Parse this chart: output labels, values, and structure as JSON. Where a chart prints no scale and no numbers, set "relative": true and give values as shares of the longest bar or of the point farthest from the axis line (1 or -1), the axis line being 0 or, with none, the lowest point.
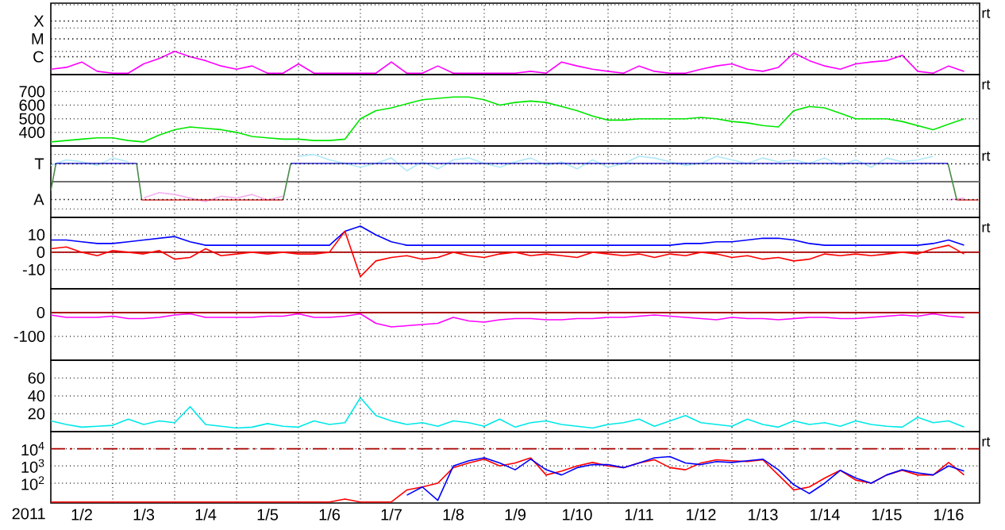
{
  "chart_data": [
    {
      "type": "line",
      "relative": true,
      "grid": true,
      "tick_labels": false,
      "annotations": [
        "C",
        "M",
        "X",
        "rt"
      ],
      "xlim": [
        "2011-01-02T00:00",
        "2011-01-17T00:00"
      ],
      "xticks": [
        {
          "value": "2011-01-03T00:00",
          "label": null
        },
        {
          "value": "2011-01-04T00:00",
          "label": null
        },
        {
          "value": "2011-01-05T00:00",
          "label": null
        },
        {
          "value": "2011-01-06T00:00",
          "label": null
        },
        {
          "value": "2011-01-07T00:00",
          "label": null
        },
        {
          "value": "2011-01-08T00:00",
          "label": null
        },
        {
          "value": "2011-01-09T00:00",
          "label": null
        },
        {
          "value": "2011-01-10T00:00",
          "label": null
        },
        {
          "value": "2011-01-11T00:00",
          "label": null
        },
        {
          "value": "2011-01-12T00:00",
          "label": null
        },
        {
          "value": "2011-01-13T00:00",
          "label": null
        },
        {
          "value": "2011-01-14T00:00",
          "label": null
        },
        {
          "value": "2011-01-15T00:00",
          "label": null
        },
        {
          "value": "2011-01-16T00:00",
          "label": null
        }
      ],
      "x": [
        "2011-01-02T00:00",
        "2011-01-02T06:00",
        "2011-01-02T12:00",
        "2011-01-02T18:00",
        "2011-01-03T00:00",
        "2011-01-03T06:00",
        "2011-01-03T12:00",
        "2011-01-03T18:00",
        "2011-01-04T00:00",
        "2011-01-04T06:00",
        "2011-01-04T12:00",
        "2011-01-04T18:00",
        "2011-01-05T00:00",
        "2011-01-05T06:00",
        "2011-01-05T12:00",
        "2011-01-05T18:00",
        "2011-01-06T00:00",
        "2011-01-06T06:00",
        "2011-01-06T12:00",
        "2011-01-06T18:00",
        "2011-01-07T00:00",
        "2011-01-07T06:00",
        "2011-01-07T12:00",
        "2011-01-07T18:00",
        "2011-01-08T00:00",
        "2011-01-08T06:00",
        "2011-01-08T12:00",
        "2011-01-08T18:00",
        "2011-01-09T00:00",
        "2011-01-09T06:00",
        "2011-01-09T12:00",
        "2011-01-09T18:00",
        "2011-01-10T00:00",
        "2011-01-10T06:00",
        "2011-01-10T12:00",
        "2011-01-10T18:00",
        "2011-01-11T00:00",
        "2011-01-11T06:00",
        "2011-01-11T12:00",
        "2011-01-11T18:00",
        "2011-01-12T00:00",
        "2011-01-12T06:00",
        "2011-01-12T12:00",
        "2011-01-12T18:00",
        "2011-01-13T00:00",
        "2011-01-13T06:00",
        "2011-01-13T12:00",
        "2011-01-13T18:00",
        "2011-01-14T00:00",
        "2011-01-14T06:00",
        "2011-01-14T12:00",
        "2011-01-14T18:00",
        "2011-01-15T00:00",
        "2011-01-15T06:00",
        "2011-01-15T12:00",
        "2011-01-15T18:00",
        "2011-01-16T00:00",
        "2011-01-16T06:00",
        "2011-01-16T12:00",
        "2011-01-16T18:00"
      ],
      "series": [
        {
          "color": "#ff00ff",
          "values": [
            0.23,
            0.31,
            0.54,
            0.14,
            0.06,
            0.06,
            0.46,
            0.69,
            1,
            0.77,
            0.6,
            0.37,
            0.23,
            0.37,
            0.06,
            0.06,
            0.46,
            0.06,
            0.06,
            0.06,
            0.06,
            0.06,
            0.54,
            0.06,
            0.06,
            0.37,
            0.06,
            0.06,
            0.06,
            0.06,
            0.06,
            0.14,
            0.06,
            0.54,
            0.37,
            0.23,
            0.14,
            0.06,
            0.37,
            0.14,
            0.06,
            0.06,
            0.23,
            0.37,
            0.46,
            0.23,
            0.14,
            0.31,
            0.93,
            0.6,
            0.37,
            0.23,
            0.46,
            0.54,
            0.6,
            0.83,
            0.14,
            0.06,
            0.37,
            0.14
          ]
        }
      ]
    },
    {
      "type": "line",
      "ylim": [
        300,
        825
      ],
      "yticks": [
        400,
        500,
        600,
        700
      ],
      "grid": true,
      "tick_labels": "y",
      "annotations": [
        "rt"
      ],
      "xlim": [
        "2011-01-02T00:00",
        "2011-01-17T00:00"
      ],
      "xticks": [
        {
          "value": "2011-01-03T00:00",
          "label": null
        },
        {
          "value": "2011-01-04T00:00",
          "label": null
        },
        {
          "value": "2011-01-05T00:00",
          "label": null
        },
        {
          "value": "2011-01-06T00:00",
          "label": null
        },
        {
          "value": "2011-01-07T00:00",
          "label": null
        },
        {
          "value": "2011-01-08T00:00",
          "label": null
        },
        {
          "value": "2011-01-09T00:00",
          "label": null
        },
        {
          "value": "2011-01-10T00:00",
          "label": null
        },
        {
          "value": "2011-01-11T00:00",
          "label": null
        },
        {
          "value": "2011-01-12T00:00",
          "label": null
        },
        {
          "value": "2011-01-13T00:00",
          "label": null
        },
        {
          "value": "2011-01-14T00:00",
          "label": null
        },
        {
          "value": "2011-01-15T00:00",
          "label": null
        },
        {
          "value": "2011-01-16T00:00",
          "label": null
        }
      ],
      "x": [
        "2011-01-02T00:00",
        "2011-01-02T06:00",
        "2011-01-02T12:00",
        "2011-01-02T18:00",
        "2011-01-03T00:00",
        "2011-01-03T06:00",
        "2011-01-03T12:00",
        "2011-01-03T18:00",
        "2011-01-04T00:00",
        "2011-01-04T06:00",
        "2011-01-04T12:00",
        "2011-01-04T18:00",
        "2011-01-05T00:00",
        "2011-01-05T06:00",
        "2011-01-05T12:00",
        "2011-01-05T18:00",
        "2011-01-06T00:00",
        "2011-01-06T06:00",
        "2011-01-06T12:00",
        "2011-01-06T18:00",
        "2011-01-07T00:00",
        "2011-01-07T06:00",
        "2011-01-07T12:00",
        "2011-01-07T18:00",
        "2011-01-08T00:00",
        "2011-01-08T06:00",
        "2011-01-08T12:00",
        "2011-01-08T18:00",
        "2011-01-09T00:00",
        "2011-01-09T06:00",
        "2011-01-09T12:00",
        "2011-01-09T18:00",
        "2011-01-10T00:00",
        "2011-01-10T06:00",
        "2011-01-10T12:00",
        "2011-01-10T18:00",
        "2011-01-11T00:00",
        "2011-01-11T06:00",
        "2011-01-11T12:00",
        "2011-01-11T18:00",
        "2011-01-12T00:00",
        "2011-01-12T06:00",
        "2011-01-12T12:00",
        "2011-01-12T18:00",
        "2011-01-13T00:00",
        "2011-01-13T06:00",
        "2011-01-13T12:00",
        "2011-01-13T18:00",
        "2011-01-14T00:00",
        "2011-01-14T06:00",
        "2011-01-14T12:00",
        "2011-01-14T18:00",
        "2011-01-15T00:00",
        "2011-01-15T06:00",
        "2011-01-15T12:00",
        "2011-01-15T18:00",
        "2011-01-16T00:00",
        "2011-01-16T06:00",
        "2011-01-16T12:00",
        "2011-01-16T18:00"
      ],
      "series": [
        {
          "color": "#00e600",
          "values": [
            330,
            340,
            350,
            360,
            360,
            340,
            330,
            380,
            420,
            440,
            430,
            420,
            400,
            370,
            360,
            350,
            350,
            340,
            340,
            350,
            500,
            560,
            580,
            610,
            640,
            650,
            660,
            660,
            640,
            600,
            620,
            630,
            620,
            590,
            560,
            520,
            490,
            490,
            500,
            500,
            500,
            500,
            510,
            500,
            480,
            470,
            450,
            440,
            560,
            590,
            580,
            540,
            500,
            500,
            500,
            480,
            450,
            420,
            460,
            500
          ]
        }
      ]
    },
    {
      "type": "line",
      "relative": true,
      "grid": true,
      "tick_labels": false,
      "annotations": [
        "A",
        "T",
        "rt"
      ],
      "ref_lines": [
        {
          "axis": "y",
          "value": 0,
          "color": "#707070"
        }
      ],
      "xlim": [
        "2011-01-02T00:00",
        "2011-01-17T00:00"
      ],
      "xticks": [
        {
          "value": "2011-01-03T00:00",
          "label": null
        },
        {
          "value": "2011-01-04T00:00",
          "label": null
        },
        {
          "value": "2011-01-05T00:00",
          "label": null
        },
        {
          "value": "2011-01-06T00:00",
          "label": null
        },
        {
          "value": "2011-01-07T00:00",
          "label": null
        },
        {
          "value": "2011-01-08T00:00",
          "label": null
        },
        {
          "value": "2011-01-09T00:00",
          "label": null
        },
        {
          "value": "2011-01-10T00:00",
          "label": null
        },
        {
          "value": "2011-01-11T00:00",
          "label": null
        },
        {
          "value": "2011-01-12T00:00",
          "label": null
        },
        {
          "value": "2011-01-13T00:00",
          "label": null
        },
        {
          "value": "2011-01-14T00:00",
          "label": null
        },
        {
          "value": "2011-01-15T00:00",
          "label": null
        },
        {
          "value": "2011-01-16T00:00",
          "label": null
        }
      ],
      "x": [
        "2011-01-02T00:00",
        "2011-01-02T06:00",
        "2011-01-02T12:00",
        "2011-01-02T18:00",
        "2011-01-03T00:00",
        "2011-01-03T06:00",
        "2011-01-03T12:00",
        "2011-01-03T18:00",
        "2011-01-04T00:00",
        "2011-01-04T06:00",
        "2011-01-04T12:00",
        "2011-01-04T18:00",
        "2011-01-05T00:00",
        "2011-01-05T06:00",
        "2011-01-05T12:00",
        "2011-01-05T18:00",
        "2011-01-06T00:00",
        "2011-01-06T06:00",
        "2011-01-06T12:00",
        "2011-01-06T18:00",
        "2011-01-07T00:00",
        "2011-01-07T06:00",
        "2011-01-07T12:00",
        "2011-01-07T18:00",
        "2011-01-08T00:00",
        "2011-01-08T06:00",
        "2011-01-08T12:00",
        "2011-01-08T18:00",
        "2011-01-09T00:00",
        "2011-01-09T06:00",
        "2011-01-09T12:00",
        "2011-01-09T18:00",
        "2011-01-10T00:00",
        "2011-01-10T06:00",
        "2011-01-10T12:00",
        "2011-01-10T18:00",
        "2011-01-11T00:00",
        "2011-01-11T06:00",
        "2011-01-11T12:00",
        "2011-01-11T18:00",
        "2011-01-12T00:00",
        "2011-01-12T06:00",
        "2011-01-12T12:00",
        "2011-01-12T18:00",
        "2011-01-13T00:00",
        "2011-01-13T06:00",
        "2011-01-13T12:00",
        "2011-01-13T18:00",
        "2011-01-14T00:00",
        "2011-01-14T06:00",
        "2011-01-14T12:00",
        "2011-01-14T18:00",
        "2011-01-15T00:00",
        "2011-01-15T06:00",
        "2011-01-15T12:00",
        "2011-01-15T18:00",
        "2011-01-16T00:00",
        "2011-01-16T06:00",
        "2011-01-16T12:00",
        "2011-01-16T18:00"
      ],
      "series": [
        {
          "color": "#b0e8f8",
          "values": [
            0.6,
            0.8,
            0.73,
            0.6,
            0.87,
            0.73,
            null,
            null,
            null,
            null,
            null,
            null,
            null,
            null,
            null,
            null,
            0.93,
            1,
            0.8,
            0.67,
            0.53,
            0.67,
            0.87,
            0.4,
            0.73,
            0.47,
            0.8,
            0.87,
            0.67,
            0.53,
            0.73,
            0.87,
            0.6,
            0.73,
            0.47,
            0.8,
            0.53,
            0.67,
            0.93,
            0.87,
            0.73,
            0.6,
            0.67,
            0.93,
            0.8,
            0.67,
            0.87,
            0.73,
            0.8,
            0.67,
            0.87,
            0.6,
            0.8,
            0.53,
            0.87,
            0.73,
            0.8,
            0.93,
            null,
            null
          ]
        },
        {
          "color": "#f4b0f0",
          "values": [
            null,
            null,
            null,
            null,
            null,
            null,
            -0.6,
            -0.4,
            -0.47,
            -0.6,
            -0.73,
            -0.53,
            -0.6,
            -0.47,
            -0.67,
            -0.53,
            null,
            null,
            null,
            null,
            null,
            null,
            null,
            null,
            null,
            null,
            null,
            null,
            null,
            null,
            null,
            null,
            null,
            null,
            null,
            null,
            null,
            null,
            null,
            null,
            null,
            null,
            null,
            null,
            null,
            null,
            null,
            null,
            null,
            null,
            null,
            null,
            null,
            null,
            null,
            null,
            null,
            null,
            -0.67,
            -0.6
          ]
        },
        {
          "color": "#4a8a4a",
          "x": [
            "2011-01-02T00:00",
            "2011-01-02T02:00",
            "2011-01-03T00:00",
            "2011-01-03T09:15",
            "2011-01-03T11:15",
            "2011-01-04T00:00",
            "2011-01-05T18:00",
            "2011-01-05T21:00",
            "2011-01-10T00:00",
            "2011-01-16T11:45",
            "2011-01-16T15:10"
          ],
          "values": [
            -0.33,
            0.67,
            null,
            0.67,
            -0.67,
            null,
            -0.67,
            0.67,
            null,
            0.67,
            -0.67
          ]
        },
        {
          "color": "#3030e0",
          "x": [
            "2011-01-02T02:00",
            "2011-01-03T09:15",
            "2011-01-04T00:00",
            "2011-01-05T21:00",
            "2011-01-16T11:45"
          ],
          "values": [
            0.67,
            0.67,
            null,
            0.67,
            0.67
          ]
        },
        {
          "color": "#e03030",
          "x": [
            "2011-01-03T11:15",
            "2011-01-05T18:00",
            "2011-01-10T00:00",
            "2011-01-16T15:10",
            "2011-01-16T23:30"
          ],
          "values": [
            -0.67,
            -0.67,
            null,
            -0.67,
            -0.67
          ]
        }
      ]
    },
    {
      "type": "line",
      "ylim": [
        -21,
        20
      ],
      "yticks": [
        -10,
        0,
        10
      ],
      "grid": true,
      "tick_labels": "y",
      "annotations": [
        "rt"
      ],
      "ref_lines": [
        {
          "axis": "y",
          "value": 0,
          "color": "#aa0000"
        }
      ],
      "xlim": [
        "2011-01-02T00:00",
        "2011-01-17T00:00"
      ],
      "xticks": [
        {
          "value": "2011-01-03T00:00",
          "label": null
        },
        {
          "value": "2011-01-04T00:00",
          "label": null
        },
        {
          "value": "2011-01-05T00:00",
          "label": null
        },
        {
          "value": "2011-01-06T00:00",
          "label": null
        },
        {
          "value": "2011-01-07T00:00",
          "label": null
        },
        {
          "value": "2011-01-08T00:00",
          "label": null
        },
        {
          "value": "2011-01-09T00:00",
          "label": null
        },
        {
          "value": "2011-01-10T00:00",
          "label": null
        },
        {
          "value": "2011-01-11T00:00",
          "label": null
        },
        {
          "value": "2011-01-12T00:00",
          "label": null
        },
        {
          "value": "2011-01-13T00:00",
          "label": null
        },
        {
          "value": "2011-01-14T00:00",
          "label": null
        },
        {
          "value": "2011-01-15T00:00",
          "label": null
        },
        {
          "value": "2011-01-16T00:00",
          "label": null
        }
      ],
      "x": [
        "2011-01-02T00:00",
        "2011-01-02T06:00",
        "2011-01-02T12:00",
        "2011-01-02T18:00",
        "2011-01-03T00:00",
        "2011-01-03T06:00",
        "2011-01-03T12:00",
        "2011-01-03T18:00",
        "2011-01-04T00:00",
        "2011-01-04T06:00",
        "2011-01-04T12:00",
        "2011-01-04T18:00",
        "2011-01-05T00:00",
        "2011-01-05T06:00",
        "2011-01-05T12:00",
        "2011-01-05T18:00",
        "2011-01-06T00:00",
        "2011-01-06T06:00",
        "2011-01-06T12:00",
        "2011-01-06T18:00",
        "2011-01-07T00:00",
        "2011-01-07T06:00",
        "2011-01-07T12:00",
        "2011-01-07T18:00",
        "2011-01-08T00:00",
        "2011-01-08T06:00",
        "2011-01-08T12:00",
        "2011-01-08T18:00",
        "2011-01-09T00:00",
        "2011-01-09T06:00",
        "2011-01-09T12:00",
        "2011-01-09T18:00",
        "2011-01-10T00:00",
        "2011-01-10T06:00",
        "2011-01-10T12:00",
        "2011-01-10T18:00",
        "2011-01-11T00:00",
        "2011-01-11T06:00",
        "2011-01-11T12:00",
        "2011-01-11T18:00",
        "2011-01-12T00:00",
        "2011-01-12T06:00",
        "2011-01-12T12:00",
        "2011-01-12T18:00",
        "2011-01-13T00:00",
        "2011-01-13T06:00",
        "2011-01-13T12:00",
        "2011-01-13T18:00",
        "2011-01-14T00:00",
        "2011-01-14T06:00",
        "2011-01-14T12:00",
        "2011-01-14T18:00",
        "2011-01-15T00:00",
        "2011-01-15T06:00",
        "2011-01-15T12:00",
        "2011-01-15T18:00",
        "2011-01-16T00:00",
        "2011-01-16T06:00",
        "2011-01-16T12:00",
        "2011-01-16T18:00"
      ],
      "series": [
        {
          "color": "#0000ff",
          "values": [
            7,
            7,
            6,
            5,
            5,
            6,
            7,
            8,
            9,
            6,
            4,
            4,
            4,
            4,
            4,
            4,
            4,
            4,
            4,
            12,
            15,
            10,
            6,
            4,
            4,
            4,
            4,
            4,
            4,
            4,
            4,
            4,
            4,
            4,
            4,
            4,
            4,
            4,
            4,
            4,
            4,
            5,
            5,
            6,
            6,
            7,
            8,
            8,
            7,
            5,
            4,
            4,
            4,
            4,
            4,
            4,
            4,
            5,
            7,
            4
          ]
        },
        {
          "color": "#ff0000",
          "values": [
            2,
            3,
            0,
            -2,
            1,
            0,
            -1,
            1,
            -4,
            -3,
            2,
            -2,
            -1,
            0,
            -1,
            0,
            -1,
            -1,
            0,
            12,
            -14,
            -5,
            -3,
            -2,
            -4,
            -3,
            0,
            -2,
            -3,
            -1,
            0,
            -2,
            -1,
            -2,
            -3,
            0,
            -1,
            -2,
            -1,
            -3,
            -1,
            -2,
            0,
            -1,
            -3,
            -2,
            -4,
            -3,
            -5,
            -4,
            -1,
            -2,
            -1,
            -2,
            -1,
            0,
            -1,
            2,
            4,
            -1
          ]
        }
      ]
    },
    {
      "type": "line",
      "ylim": [
        -200,
        100
      ],
      "yticks": [
        -100,
        0
      ],
      "grid": true,
      "tick_labels": "y",
      "ref_lines": [
        {
          "axis": "y",
          "value": 0,
          "color": "#aa0000"
        }
      ],
      "xlim": [
        "2011-01-02T00:00",
        "2011-01-17T00:00"
      ],
      "xticks": [
        {
          "value": "2011-01-03T00:00",
          "label": null
        },
        {
          "value": "2011-01-04T00:00",
          "label": null
        },
        {
          "value": "2011-01-05T00:00",
          "label": null
        },
        {
          "value": "2011-01-06T00:00",
          "label": null
        },
        {
          "value": "2011-01-07T00:00",
          "label": null
        },
        {
          "value": "2011-01-08T00:00",
          "label": null
        },
        {
          "value": "2011-01-09T00:00",
          "label": null
        },
        {
          "value": "2011-01-10T00:00",
          "label": null
        },
        {
          "value": "2011-01-11T00:00",
          "label": null
        },
        {
          "value": "2011-01-12T00:00",
          "label": null
        },
        {
          "value": "2011-01-13T00:00",
          "label": null
        },
        {
          "value": "2011-01-14T00:00",
          "label": null
        },
        {
          "value": "2011-01-15T00:00",
          "label": null
        },
        {
          "value": "2011-01-16T00:00",
          "label": null
        }
      ],
      "x": [
        "2011-01-02T00:00",
        "2011-01-02T06:00",
        "2011-01-02T12:00",
        "2011-01-02T18:00",
        "2011-01-03T00:00",
        "2011-01-03T06:00",
        "2011-01-03T12:00",
        "2011-01-03T18:00",
        "2011-01-04T00:00",
        "2011-01-04T06:00",
        "2011-01-04T12:00",
        "2011-01-04T18:00",
        "2011-01-05T00:00",
        "2011-01-05T06:00",
        "2011-01-05T12:00",
        "2011-01-05T18:00",
        "2011-01-06T00:00",
        "2011-01-06T06:00",
        "2011-01-06T12:00",
        "2011-01-06T18:00",
        "2011-01-07T00:00",
        "2011-01-07T06:00",
        "2011-01-07T12:00",
        "2011-01-07T18:00",
        "2011-01-08T00:00",
        "2011-01-08T06:00",
        "2011-01-08T12:00",
        "2011-01-08T18:00",
        "2011-01-09T00:00",
        "2011-01-09T06:00",
        "2011-01-09T12:00",
        "2011-01-09T18:00",
        "2011-01-10T00:00",
        "2011-01-10T06:00",
        "2011-01-10T12:00",
        "2011-01-10T18:00",
        "2011-01-11T00:00",
        "2011-01-11T06:00",
        "2011-01-11T12:00",
        "2011-01-11T18:00",
        "2011-01-12T00:00",
        "2011-01-12T06:00",
        "2011-01-12T12:00",
        "2011-01-12T18:00",
        "2011-01-13T00:00",
        "2011-01-13T06:00",
        "2011-01-13T12:00",
        "2011-01-13T18:00",
        "2011-01-14T00:00",
        "2011-01-14T06:00",
        "2011-01-14T12:00",
        "2011-01-14T18:00",
        "2011-01-15T00:00",
        "2011-01-15T06:00",
        "2011-01-15T12:00",
        "2011-01-15T18:00",
        "2011-01-16T00:00",
        "2011-01-16T06:00",
        "2011-01-16T12:00",
        "2011-01-16T18:00"
      ],
      "series": [
        {
          "color": "#ff00ff",
          "values": [
            -10,
            -20,
            -20,
            -20,
            -15,
            -25,
            -25,
            -20,
            -10,
            -5,
            -20,
            -20,
            -20,
            -20,
            -15,
            -15,
            -5,
            -20,
            -20,
            -15,
            -5,
            -45,
            -60,
            -55,
            -50,
            -45,
            -20,
            -35,
            -40,
            -30,
            -25,
            -25,
            -30,
            -30,
            -25,
            -25,
            -20,
            -20,
            -15,
            -10,
            -15,
            -20,
            -25,
            -30,
            -20,
            -25,
            -25,
            -30,
            -25,
            -20,
            -20,
            -25,
            -25,
            -20,
            -15,
            -10,
            -15,
            -5,
            -15,
            -20
          ]
        }
      ]
    },
    {
      "type": "line",
      "ylim": [
        0,
        80
      ],
      "yticks": [
        20,
        40,
        60
      ],
      "grid": true,
      "tick_labels": "y",
      "xlim": [
        "2011-01-02T00:00",
        "2011-01-17T00:00"
      ],
      "xticks": [
        {
          "value": "2011-01-03T00:00",
          "label": null
        },
        {
          "value": "2011-01-04T00:00",
          "label": null
        },
        {
          "value": "2011-01-05T00:00",
          "label": null
        },
        {
          "value": "2011-01-06T00:00",
          "label": null
        },
        {
          "value": "2011-01-07T00:00",
          "label": null
        },
        {
          "value": "2011-01-08T00:00",
          "label": null
        },
        {
          "value": "2011-01-09T00:00",
          "label": null
        },
        {
          "value": "2011-01-10T00:00",
          "label": null
        },
        {
          "value": "2011-01-11T00:00",
          "label": null
        },
        {
          "value": "2011-01-12T00:00",
          "label": null
        },
        {
          "value": "2011-01-13T00:00",
          "label": null
        },
        {
          "value": "2011-01-14T00:00",
          "label": null
        },
        {
          "value": "2011-01-15T00:00",
          "label": null
        },
        {
          "value": "2011-01-16T00:00",
          "label": null
        }
      ],
      "x": [
        "2011-01-02T00:00",
        "2011-01-02T06:00",
        "2011-01-02T12:00",
        "2011-01-02T18:00",
        "2011-01-03T00:00",
        "2011-01-03T06:00",
        "2011-01-03T12:00",
        "2011-01-03T18:00",
        "2011-01-04T00:00",
        "2011-01-04T06:00",
        "2011-01-04T12:00",
        "2011-01-04T18:00",
        "2011-01-05T00:00",
        "2011-01-05T06:00",
        "2011-01-05T12:00",
        "2011-01-05T18:00",
        "2011-01-06T00:00",
        "2011-01-06T06:00",
        "2011-01-06T12:00",
        "2011-01-06T18:00",
        "2011-01-07T00:00",
        "2011-01-07T06:00",
        "2011-01-07T12:00",
        "2011-01-07T18:00",
        "2011-01-08T00:00",
        "2011-01-08T06:00",
        "2011-01-08T12:00",
        "2011-01-08T18:00",
        "2011-01-09T00:00",
        "2011-01-09T06:00",
        "2011-01-09T12:00",
        "2011-01-09T18:00",
        "2011-01-10T00:00",
        "2011-01-10T06:00",
        "2011-01-10T12:00",
        "2011-01-10T18:00",
        "2011-01-11T00:00",
        "2011-01-11T06:00",
        "2011-01-11T12:00",
        "2011-01-11T18:00",
        "2011-01-12T00:00",
        "2011-01-12T06:00",
        "2011-01-12T12:00",
        "2011-01-12T18:00",
        "2011-01-13T00:00",
        "2011-01-13T06:00",
        "2011-01-13T12:00",
        "2011-01-13T18:00",
        "2011-01-14T00:00",
        "2011-01-14T06:00",
        "2011-01-14T12:00",
        "2011-01-14T18:00",
        "2011-01-15T00:00",
        "2011-01-15T06:00",
        "2011-01-15T12:00",
        "2011-01-15T18:00",
        "2011-01-16T00:00",
        "2011-01-16T06:00",
        "2011-01-16T12:00",
        "2011-01-16T18:00"
      ],
      "series": [
        {
          "color": "#00e8e8",
          "values": [
            12,
            8,
            5,
            6,
            7,
            14,
            8,
            12,
            10,
            28,
            8,
            6,
            4,
            5,
            9,
            6,
            5,
            12,
            8,
            10,
            38,
            18,
            12,
            8,
            10,
            6,
            12,
            10,
            6,
            14,
            5,
            10,
            12,
            8,
            6,
            4,
            8,
            10,
            14,
            6,
            12,
            18,
            10,
            8,
            6,
            14,
            8,
            5,
            12,
            8,
            10,
            6,
            12,
            8,
            6,
            5,
            16,
            10,
            12,
            5
          ]
        }
      ]
    },
    {
      "type": "line",
      "log": "y",
      "ylim": [
        7,
        100000
      ],
      "yticks": [
        {
          "value": 100,
          "label": "10$^{2}$"
        },
        {
          "value": 1000,
          "label": "10$^{3}$"
        },
        {
          "value": 10000,
          "label": "10$^{4}$"
        }
      ],
      "grid": true,
      "annotations": [
        "rt"
      ],
      "xlabel": "2011",
      "ref_lines": [
        {
          "axis": "y",
          "value": 10000,
          "color": "#aa0000",
          "line_style": "dashed"
        }
      ],
      "xlim": [
        "2011-01-02T00:00",
        "2011-01-17T00:00"
      ],
      "xticks": [
        {
          "value": "2011-01-02T12:00",
          "label": "1/2"
        },
        {
          "value": "2011-01-03T12:00",
          "label": "1/3"
        },
        {
          "value": "2011-01-04T12:00",
          "label": "1/4"
        },
        {
          "value": "2011-01-05T12:00",
          "label": "1/5"
        },
        {
          "value": "2011-01-06T12:00",
          "label": "1/6"
        },
        {
          "value": "2011-01-07T12:00",
          "label": "1/7"
        },
        {
          "value": "2011-01-08T12:00",
          "label": "1/8"
        },
        {
          "value": "2011-01-09T12:00",
          "label": "1/9"
        },
        {
          "value": "2011-01-10T12:00",
          "label": "1/10"
        },
        {
          "value": "2011-01-11T12:00",
          "label": "1/11"
        },
        {
          "value": "2011-01-12T12:00",
          "label": "1/12"
        },
        {
          "value": "2011-01-13T12:00",
          "label": "1/13"
        },
        {
          "value": "2011-01-14T12:00",
          "label": "1/14"
        },
        {
          "value": "2011-01-15T12:00",
          "label": "1/15"
        },
        {
          "value": "2011-01-16T12:00",
          "label": "1/16"
        },
        {
          "value": "2011-01-03T00:00",
          "label": null
        },
        {
          "value": "2011-01-04T00:00",
          "label": null
        },
        {
          "value": "2011-01-05T00:00",
          "label": null
        },
        {
          "value": "2011-01-06T00:00",
          "label": null
        },
        {
          "value": "2011-01-07T00:00",
          "label": null
        },
        {
          "value": "2011-01-08T00:00",
          "label": null
        },
        {
          "value": "2011-01-09T00:00",
          "label": null
        },
        {
          "value": "2011-01-10T00:00",
          "label": null
        },
        {
          "value": "2011-01-11T00:00",
          "label": null
        },
        {
          "value": "2011-01-12T00:00",
          "label": null
        },
        {
          "value": "2011-01-13T00:00",
          "label": null
        },
        {
          "value": "2011-01-14T00:00",
          "label": null
        },
        {
          "value": "2011-01-15T00:00",
          "label": null
        },
        {
          "value": "2011-01-16T00:00",
          "label": null
        }
      ],
      "x": [
        "2011-01-02T00:00",
        "2011-01-02T06:00",
        "2011-01-02T12:00",
        "2011-01-02T18:00",
        "2011-01-03T00:00",
        "2011-01-03T06:00",
        "2011-01-03T12:00",
        "2011-01-03T18:00",
        "2011-01-04T00:00",
        "2011-01-04T06:00",
        "2011-01-04T12:00",
        "2011-01-04T18:00",
        "2011-01-05T00:00",
        "2011-01-05T06:00",
        "2011-01-05T12:00",
        "2011-01-05T18:00",
        "2011-01-06T00:00",
        "2011-01-06T06:00",
        "2011-01-06T12:00",
        "2011-01-06T18:00",
        "2011-01-07T00:00",
        "2011-01-07T06:00",
        "2011-01-07T12:00",
        "2011-01-07T18:00",
        "2011-01-08T00:00",
        "2011-01-08T06:00",
        "2011-01-08T12:00",
        "2011-01-08T18:00",
        "2011-01-09T00:00",
        "2011-01-09T06:00",
        "2011-01-09T12:00",
        "2011-01-09T18:00",
        "2011-01-10T00:00",
        "2011-01-10T06:00",
        "2011-01-10T12:00",
        "2011-01-10T18:00",
        "2011-01-11T00:00",
        "2011-01-11T06:00",
        "2011-01-11T12:00",
        "2011-01-11T18:00",
        "2011-01-12T00:00",
        "2011-01-12T06:00",
        "2011-01-12T12:00",
        "2011-01-12T18:00",
        "2011-01-13T00:00",
        "2011-01-13T06:00",
        "2011-01-13T12:00",
        "2011-01-13T18:00",
        "2011-01-14T00:00",
        "2011-01-14T06:00",
        "2011-01-14T12:00",
        "2011-01-14T18:00",
        "2011-01-15T00:00",
        "2011-01-15T06:00",
        "2011-01-15T12:00",
        "2011-01-15T18:00",
        "2011-01-16T00:00",
        "2011-01-16T06:00",
        "2011-01-16T12:00",
        "2011-01-16T18:00"
      ],
      "series": [
        {
          "color": "#ff0000",
          "values": [
            8,
            8,
            8,
            8,
            8,
            8,
            8,
            8,
            8,
            8,
            8,
            8,
            8,
            8,
            8,
            8,
            8,
            8,
            8,
            12,
            8,
            8,
            8,
            40,
            60,
            100,
            800,
            1500,
            2500,
            1000,
            1500,
            3000,
            300,
            500,
            1000,
            1600,
            1000,
            800,
            1500,
            2300,
            800,
            600,
            1500,
            2300,
            2000,
            1800,
            2300,
            300,
            40,
            60,
            200,
            560,
            150,
            100,
            300,
            560,
            300,
            300,
            1600,
            300
          ]
        },
        {
          "color": "#0000ff",
          "values": [
            null,
            null,
            null,
            null,
            null,
            null,
            null,
            null,
            null,
            null,
            null,
            null,
            null,
            null,
            null,
            null,
            null,
            null,
            null,
            null,
            null,
            null,
            null,
            20,
            60,
            10,
            1000,
            2000,
            3000,
            1500,
            600,
            2500,
            600,
            300,
            800,
            1200,
            1200,
            800,
            1500,
            3000,
            3500,
            1500,
            1200,
            1800,
            1600,
            2000,
            2500,
            600,
            80,
            25,
            100,
            560,
            200,
            100,
            300,
            600,
            400,
            300,
            1000,
            500
          ]
        }
      ]
    }
  ]
}
